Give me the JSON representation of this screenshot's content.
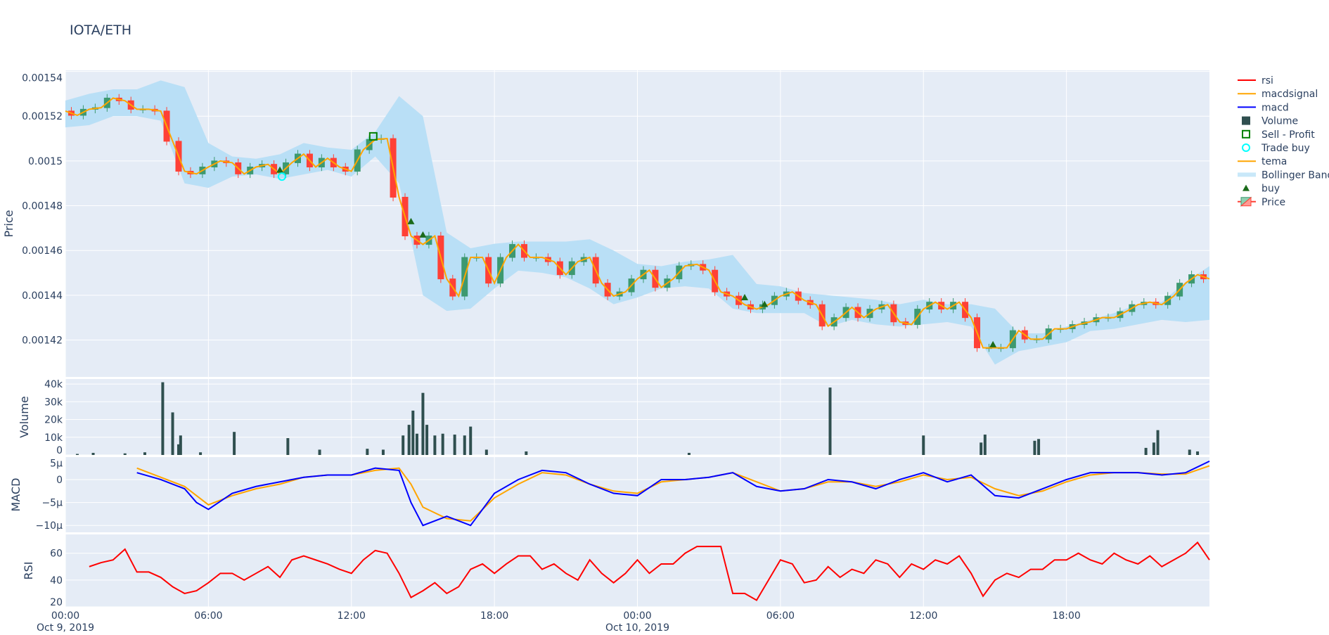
{
  "title": "IOTA/ETH",
  "chart_data": [
    {
      "type": "candlestick",
      "panel": "price",
      "ylabel": "Price",
      "ylim": [
        0.0014035,
        0.0015405
      ],
      "yticks": [
        "0.00142",
        "0.00144",
        "0.00146",
        "0.00148",
        "0.0015",
        "0.00152",
        "0.00154"
      ],
      "ytick_values": [
        0.00142,
        0.00144,
        0.00146,
        0.00148,
        0.0015,
        0.00152,
        0.00154
      ],
      "x_start": "2019-10-09 00:00",
      "step_minutes": 30,
      "close_e5": [
        152.23,
        152.04,
        152.31,
        152.38,
        152.81,
        152.69,
        152.31,
        152.31,
        152.23,
        150.88,
        149.54,
        149.42,
        149.73,
        150.0,
        149.92,
        149.42,
        149.73,
        149.85,
        149.42,
        149.92,
        150.31,
        149.73,
        150.12,
        149.73,
        149.54,
        150.5,
        150.96,
        151.0,
        148.38,
        146.65,
        146.27,
        146.65,
        144.73,
        143.96,
        145.69,
        145.69,
        144.54,
        145.69,
        146.27,
        145.69,
        145.69,
        145.5,
        144.92,
        145.5,
        145.69,
        144.54,
        143.96,
        144.15,
        144.73,
        145.12,
        144.35,
        144.73,
        145.31,
        145.38,
        145.12,
        144.15,
        143.96,
        143.58,
        143.38,
        143.58,
        143.96,
        144.15,
        143.77,
        143.58,
        142.62,
        143.0,
        143.46,
        143.0,
        143.38,
        143.58,
        142.81,
        142.69,
        143.38,
        143.69,
        143.38,
        143.69,
        143.0,
        141.65,
        141.65,
        141.65,
        142.42,
        142.04,
        142.04,
        142.5,
        142.5,
        142.69,
        142.81,
        143.0,
        143.0,
        143.27,
        143.58,
        143.69,
        143.58,
        143.96,
        144.54,
        144.92,
        144.73
      ],
      "tema_e5": "same as close_e5",
      "bollinger_step_minutes": 60,
      "bollinger_upper_e5": [
        152.7,
        153.0,
        153.2,
        153.2,
        153.6,
        153.3,
        150.8,
        150.2,
        150.1,
        150.3,
        150.8,
        150.6,
        150.5,
        151.3,
        152.9,
        152.0,
        146.8,
        146.1,
        146.3,
        146.4,
        146.4,
        146.4,
        146.5,
        146.0,
        145.4,
        145.3,
        145.5,
        145.6,
        145.8,
        144.5,
        144.4,
        144.1,
        144.0,
        143.9,
        143.8,
        143.6,
        143.8,
        143.6,
        143.6,
        143.4,
        142.3,
        142.3,
        142.6,
        142.9,
        143.2,
        143.6,
        143.7,
        144.6,
        145.3
      ],
      "bollinger_lower_e5": [
        151.5,
        151.6,
        152.0,
        152.0,
        151.8,
        149.0,
        148.8,
        149.3,
        149.4,
        149.2,
        149.4,
        149.6,
        149.3,
        150.2,
        149.0,
        144.0,
        143.3,
        143.4,
        144.3,
        145.1,
        145.0,
        144.8,
        144.3,
        143.6,
        143.9,
        144.3,
        144.4,
        144.3,
        143.4,
        143.2,
        143.2,
        143.2,
        142.6,
        142.9,
        142.7,
        142.6,
        142.7,
        142.8,
        142.6,
        140.9,
        141.5,
        141.7,
        141.9,
        142.4,
        142.5,
        142.7,
        142.9,
        142.8,
        142.9
      ],
      "buy_markers": [
        [
          "2019-10-09 09:00",
          149.6
        ],
        [
          "2019-10-09 14:30",
          147.3
        ],
        [
          "2019-10-09 15:00",
          146.7
        ],
        [
          "2019-10-10 04:30",
          143.9
        ],
        [
          "2019-10-10 05:20",
          143.6
        ],
        [
          "2019-10-10 14:55",
          141.8
        ]
      ],
      "sell_profit_markers": [
        [
          "2019-10-09 12:55",
          151.1
        ]
      ],
      "trade_buy_markers": [
        [
          "2019-10-09 09:05",
          149.3
        ]
      ],
      "colors": {
        "increasing": "#3D9970",
        "decreasing": "#FF4136",
        "tema": "#FFA500",
        "bollinger": "#b9dff6",
        "buy": "#1b6b1b",
        "sell": "#008000",
        "trade_buy": "#00ffff"
      }
    },
    {
      "type": "bar",
      "panel": "volume",
      "ylabel": "Volume",
      "ylim": [
        0,
        42800
      ],
      "yticks": [
        "0",
        "10k",
        "20k",
        "30k",
        "40k"
      ],
      "ytick_values": [
        0,
        10000,
        20000,
        30000,
        40000
      ],
      "points": [
        [
          "00:30",
          600
        ],
        [
          "01:10",
          1200
        ],
        [
          "02:30",
          900
        ],
        [
          "03:20",
          1500
        ],
        [
          "04:05",
          41000
        ],
        [
          "04:30",
          24000
        ],
        [
          "04:45",
          6000
        ],
        [
          "04:50",
          11000
        ],
        [
          "05:40",
          1500
        ],
        [
          "07:05",
          13000
        ],
        [
          "09:20",
          9500
        ],
        [
          "10:40",
          3000
        ],
        [
          "12:40",
          3500
        ],
        [
          "13:20",
          3000
        ],
        [
          "14:10",
          11000
        ],
        [
          "14:25",
          17000
        ],
        [
          "14:35",
          25000
        ],
        [
          "14:45",
          12000
        ],
        [
          "15:00",
          35000
        ],
        [
          "15:10",
          17000
        ],
        [
          "15:30",
          11000
        ],
        [
          "15:50",
          12000
        ],
        [
          "16:20",
          11500
        ],
        [
          "16:45",
          11000
        ],
        [
          "17:00",
          16000
        ],
        [
          "17:40",
          3000
        ],
        [
          "19:20",
          2000
        ],
        [
          "26:10",
          1200
        ],
        [
          "32:05",
          38000
        ],
        [
          "36:00",
          11000
        ],
        [
          "38:25",
          7000
        ],
        [
          "38:35",
          11500
        ],
        [
          "40:40",
          8000
        ],
        [
          "40:50",
          9000
        ],
        [
          "45:20",
          4000
        ],
        [
          "45:40",
          7000
        ],
        [
          "45:50",
          14000
        ],
        [
          "47:10",
          3000
        ],
        [
          "47:30",
          2000
        ]
      ],
      "color": "#2f4f4f"
    },
    {
      "type": "line",
      "panel": "macd",
      "ylabel": "MACD",
      "ylim": [
        -11.5,
        4.9
      ],
      "unit": "µ",
      "yticks": [
        "5µ",
        "0",
        "−5µ",
        "−10µ"
      ],
      "ytick_values": [
        5,
        0,
        -5,
        -10
      ],
      "x_hours": [
        3,
        4,
        5,
        5.5,
        6,
        7,
        8,
        9,
        10,
        11,
        12,
        13,
        14,
        14.5,
        15,
        16,
        17,
        18,
        19,
        20,
        21,
        22,
        23,
        24,
        25,
        26,
        27,
        28,
        29,
        30,
        31,
        32,
        33,
        34,
        35,
        36,
        37,
        38,
        39,
        40,
        41,
        42,
        43,
        44,
        45,
        46,
        47,
        48
      ],
      "series": [
        {
          "name": "macd",
          "color": "#0000ff",
          "values": [
            1.5,
            0,
            -2,
            -5,
            -6.5,
            -3,
            -1.5,
            -0.5,
            0.5,
            1,
            1,
            2.5,
            2,
            -5,
            -10,
            -8,
            -10,
            -3,
            0,
            2,
            1.5,
            -1,
            -3,
            -3.5,
            0,
            0,
            0.5,
            1.5,
            -1.5,
            -2.5,
            -2,
            0,
            -0.5,
            -2,
            0,
            1.5,
            -0.5,
            1,
            -3.5,
            -4,
            -2,
            0,
            1.5,
            1.5,
            1.5,
            1,
            1.5,
            4
          ]
        },
        {
          "name": "macdsignal",
          "color": "#FFA500",
          "values": [
            2.5,
            0.5,
            -1.5,
            -3.5,
            -5.5,
            -3.5,
            -2,
            -1,
            0.5,
            1,
            1,
            2,
            2.5,
            -1,
            -6,
            -8.5,
            -9,
            -4,
            -1,
            1.5,
            1,
            -1,
            -2.5,
            -3,
            -0.5,
            0,
            0.5,
            1.5,
            -0.5,
            -2.5,
            -2,
            -0.5,
            -0.5,
            -1.5,
            -0.5,
            1,
            0,
            0.5,
            -2,
            -3.5,
            -2.5,
            -0.5,
            1,
            1.5,
            1.5,
            1.2,
            1.2,
            3
          ]
        }
      ]
    },
    {
      "type": "line",
      "panel": "rsi",
      "ylabel": "RSI",
      "ylim": [
        20,
        74
      ],
      "yticks": [
        "20",
        "40",
        "60"
      ],
      "ytick_values": [
        20,
        40,
        60
      ],
      "x_start_hour": 1,
      "step_minutes": 30,
      "series": [
        {
          "name": "rsi",
          "color": "#ff0000",
          "values": [
            50,
            53,
            55,
            63,
            46,
            46,
            42,
            35,
            30,
            32,
            38,
            45,
            45,
            40,
            45,
            50,
            42,
            55,
            58,
            55,
            52,
            48,
            45,
            55,
            62,
            60,
            45,
            27,
            32,
            38,
            30,
            35,
            48,
            52,
            45,
            52,
            58,
            58,
            48,
            52,
            45,
            40,
            55,
            45,
            38,
            45,
            55,
            45,
            52,
            52,
            60,
            65,
            65,
            65,
            30,
            30,
            25,
            40,
            55,
            52,
            38,
            40,
            50,
            42,
            48,
            45,
            55,
            52,
            42,
            52,
            48,
            55,
            52,
            58,
            45,
            28,
            40,
            45,
            42,
            48,
            48,
            55,
            55,
            60,
            55,
            52,
            60,
            55,
            52,
            58,
            50,
            55,
            60,
            68,
            55
          ]
        }
      ]
    }
  ],
  "xaxis": {
    "range": [
      "2019-10-09 00:00",
      "2019-10-11 00:00"
    ],
    "ticks": [
      {
        "label": "00:00",
        "sub": "Oct 9, 2019"
      },
      {
        "label": "06:00",
        "sub": ""
      },
      {
        "label": "12:00",
        "sub": ""
      },
      {
        "label": "18:00",
        "sub": ""
      },
      {
        "label": "00:00",
        "sub": "Oct 10, 2019"
      },
      {
        "label": "06:00",
        "sub": ""
      },
      {
        "label": "12:00",
        "sub": ""
      },
      {
        "label": "18:00",
        "sub": ""
      }
    ]
  },
  "legend": {
    "placement": "right",
    "items": [
      {
        "label": "rsi",
        "symbol": "line",
        "color": "#ff0000"
      },
      {
        "label": "macdsignal",
        "symbol": "line",
        "color": "#FFA500"
      },
      {
        "label": "macd",
        "symbol": "line",
        "color": "#0000ff"
      },
      {
        "label": "Volume",
        "symbol": "square",
        "color": "#2f4f4f"
      },
      {
        "label": "Sell - Profit",
        "symbol": "square-open",
        "color": "#008000"
      },
      {
        "label": "Trade buy",
        "symbol": "circle-open",
        "color": "#00ffff"
      },
      {
        "label": "tema",
        "symbol": "line",
        "color": "#FFA500"
      },
      {
        "label": "Bollinger Band",
        "symbol": "band",
        "color": "#c9e8f9"
      },
      {
        "label": "buy",
        "symbol": "triangle",
        "color": "#1b6b1b"
      },
      {
        "label": "Price",
        "symbol": "candle",
        "color": "#3D9970"
      }
    ]
  }
}
